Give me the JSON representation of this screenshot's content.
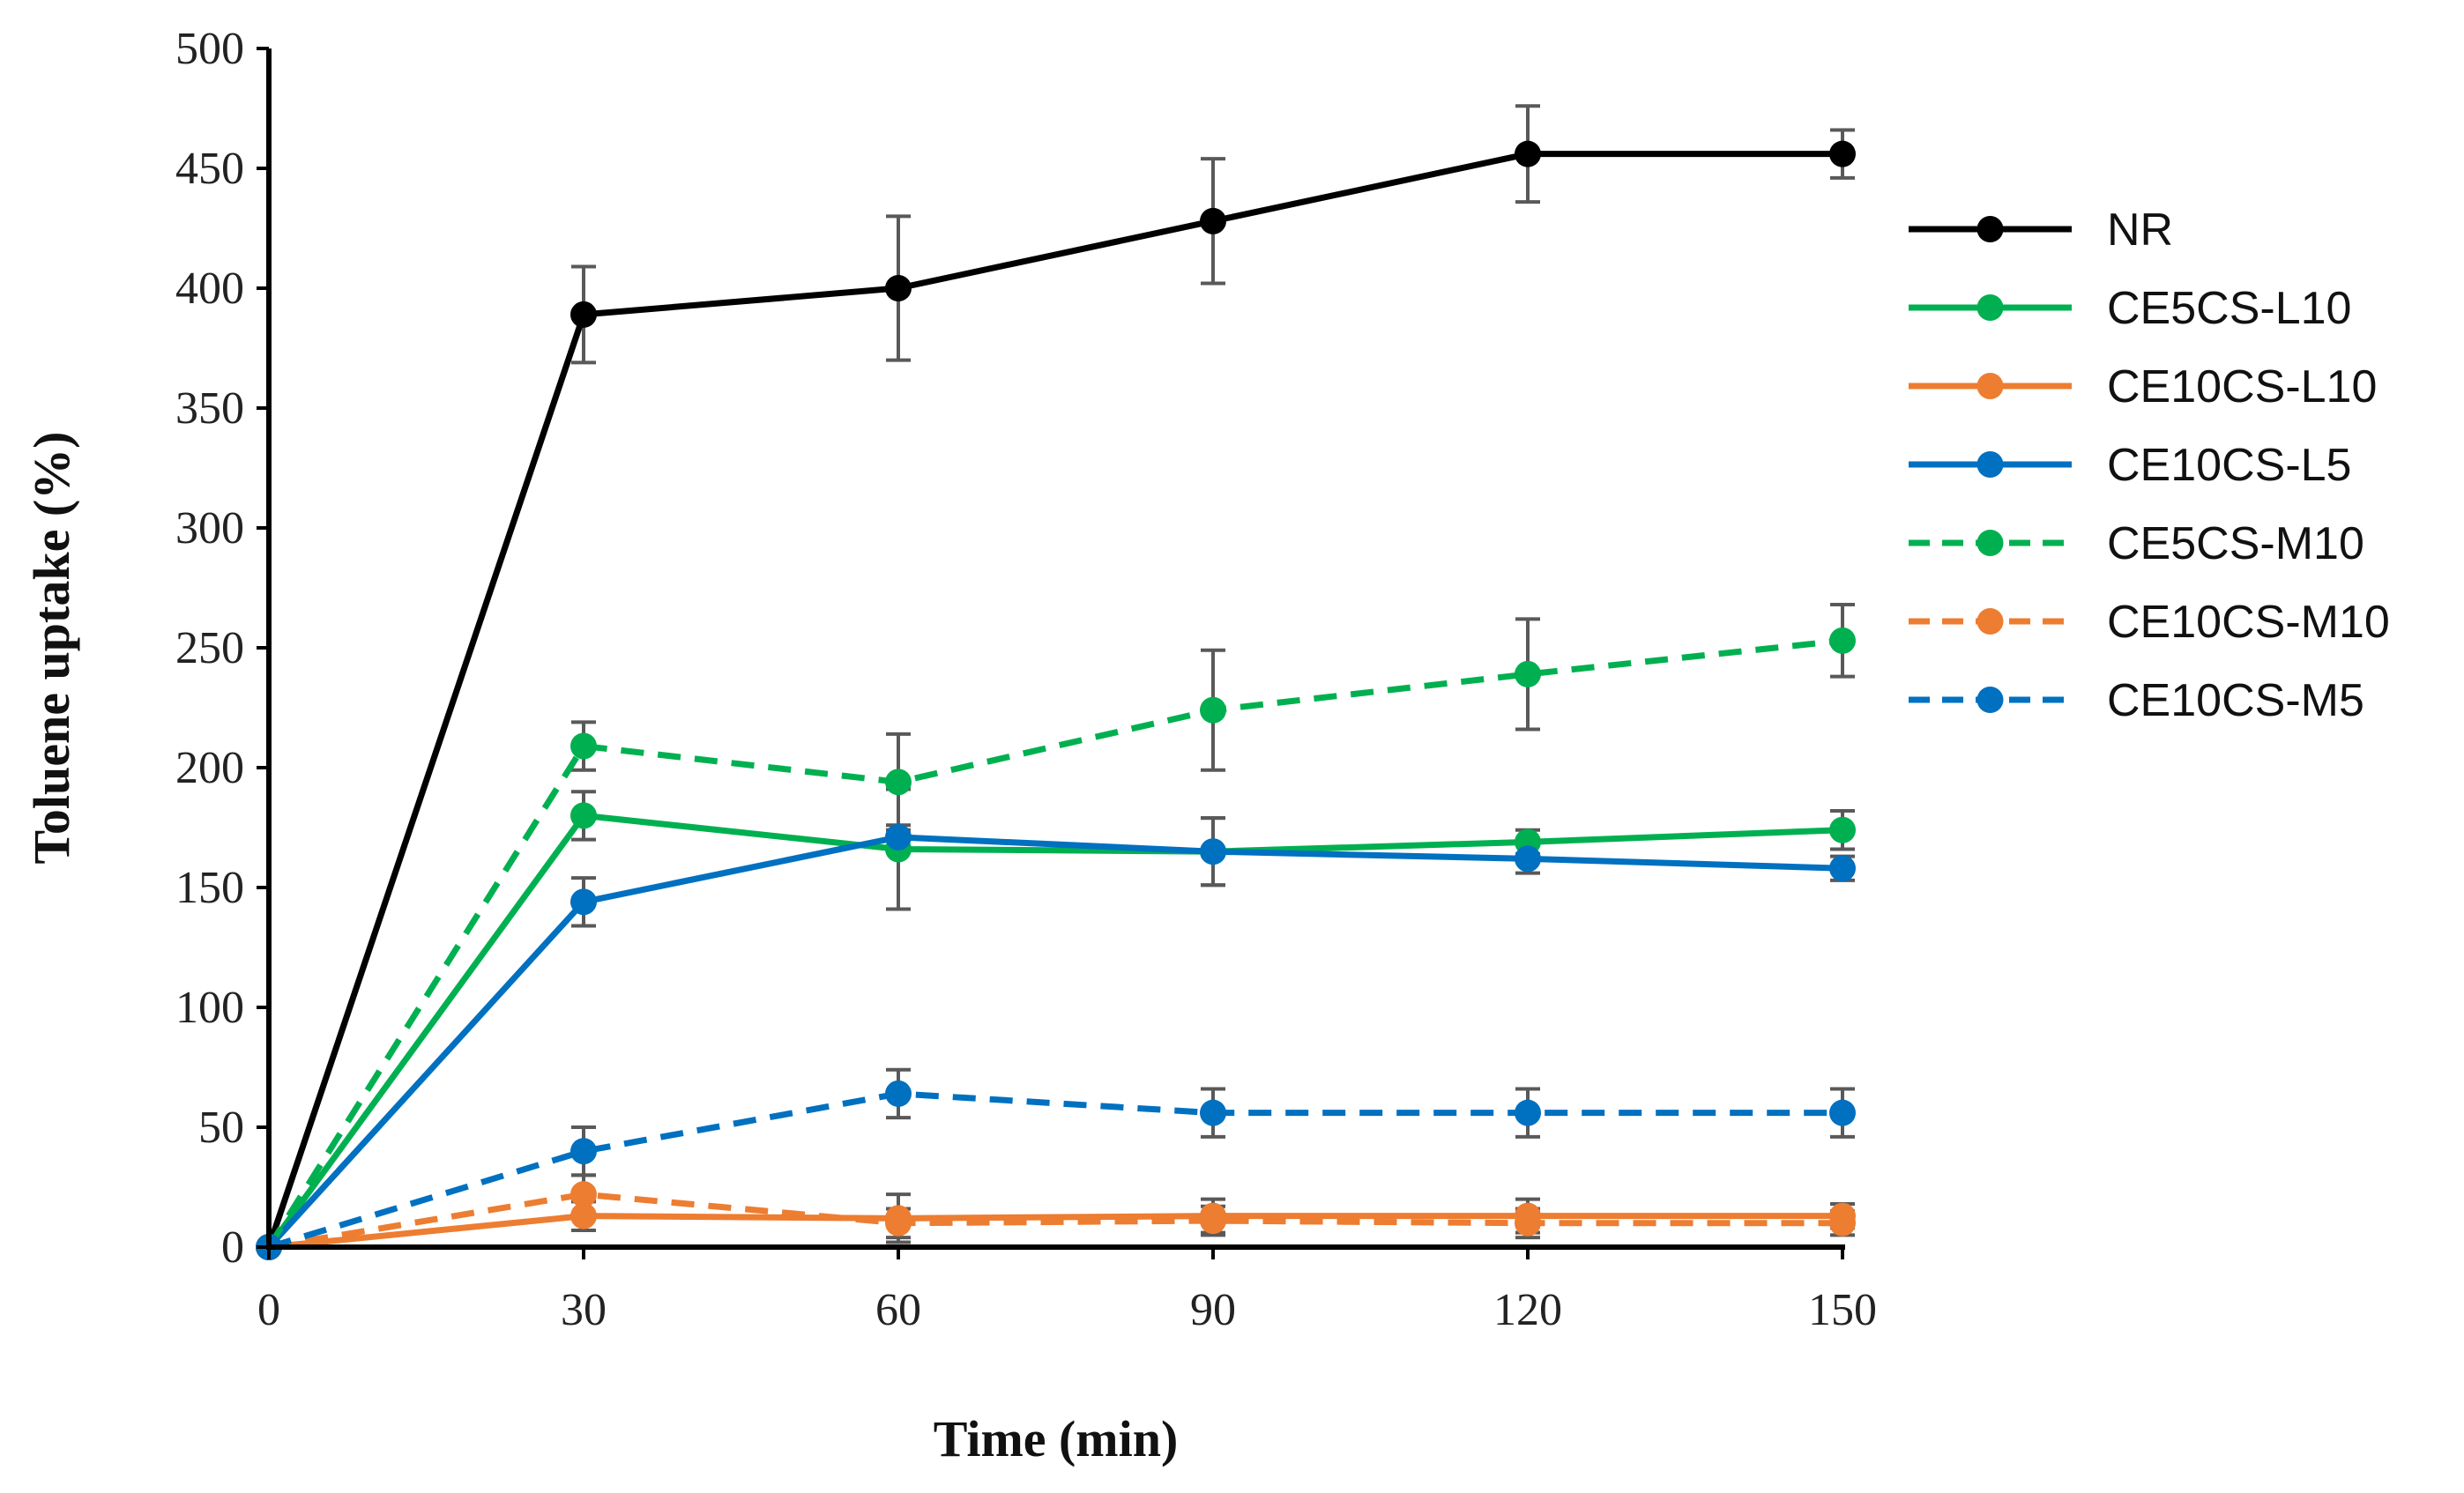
{
  "chart_data": {
    "type": "line",
    "title": "",
    "xlabel": "Time (min)",
    "ylabel": "Toluene uptake (%)",
    "x": [
      0,
      30,
      60,
      90,
      120,
      150
    ],
    "xlim": [
      0,
      150
    ],
    "ylim": [
      0,
      500
    ],
    "xticks": [
      0,
      30,
      60,
      90,
      120,
      150
    ],
    "yticks": [
      0,
      50,
      100,
      150,
      200,
      250,
      300,
      350,
      400,
      450,
      500
    ],
    "grid": false,
    "legend_position": "right",
    "series": [
      {
        "name": "NR",
        "color": "#000000",
        "dash": "solid",
        "values": [
          0,
          389,
          400,
          428,
          456,
          456
        ],
        "errors": [
          0,
          20,
          30,
          26,
          20,
          10
        ]
      },
      {
        "name": "CE5CS-L10",
        "color": "#00B050",
        "dash": "solid",
        "values": [
          0,
          180,
          166,
          165,
          169,
          174
        ],
        "errors": [
          0,
          10,
          25,
          14,
          5,
          8
        ]
      },
      {
        "name": "CE10CS-L10",
        "color": "#ED7D31",
        "dash": "solid",
        "values": [
          0,
          13,
          12,
          13,
          13,
          13
        ],
        "errors": [
          0,
          6,
          10,
          7,
          7,
          5
        ]
      },
      {
        "name": "CE10CS-L5",
        "color": "#0070C0",
        "dash": "solid",
        "values": [
          0,
          144,
          171,
          165,
          162,
          158
        ],
        "errors": [
          0,
          10,
          5,
          14,
          6,
          5
        ]
      },
      {
        "name": "CE5CS-M10",
        "color": "#00B050",
        "dash": "dashed",
        "values": [
          0,
          209,
          194,
          224,
          239,
          253
        ],
        "errors": [
          0,
          10,
          20,
          25,
          23,
          15
        ]
      },
      {
        "name": "CE10CS-M10",
        "color": "#ED7D31",
        "dash": "dashed",
        "values": [
          0,
          22,
          10,
          11,
          10,
          10
        ],
        "errors": [
          0,
          8,
          6,
          6,
          6,
          5
        ]
      },
      {
        "name": "CE10CS-M5",
        "color": "#0070C0",
        "dash": "dashed",
        "values": [
          0,
          40,
          64,
          56,
          56,
          56
        ],
        "errors": [
          0,
          10,
          10,
          10,
          10,
          10
        ]
      }
    ]
  }
}
